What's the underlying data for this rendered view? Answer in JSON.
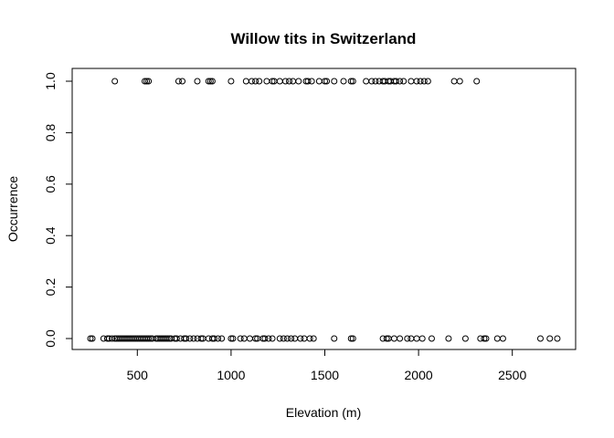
{
  "chart_data": {
    "type": "scatter",
    "title": "Willow tits in Switzerland",
    "xlabel": "Elevation (m)",
    "ylabel": "Occurrence",
    "xlim": [
      200,
      2800
    ],
    "ylim": [
      0,
      1
    ],
    "x_ticks": [
      500,
      1000,
      1500,
      2000,
      2500
    ],
    "x_tick_labels": [
      "500",
      "1000",
      "1500",
      "2000",
      "2500"
    ],
    "y_ticks": [
      0,
      0.2,
      0.4,
      0.6,
      0.8,
      1
    ],
    "y_tick_labels": [
      "0.0",
      "0.2",
      "0.4",
      "0.6",
      "0.8",
      "1.0"
    ],
    "grid": false,
    "legend": "none",
    "series": [
      {
        "marker": "open-circle",
        "points": [
          [
            250,
            0
          ],
          [
            260,
            0
          ],
          [
            320,
            0
          ],
          [
            340,
            0
          ],
          [
            350,
            0
          ],
          [
            365,
            0
          ],
          [
            380,
            0
          ],
          [
            390,
            0
          ],
          [
            400,
            0
          ],
          [
            410,
            0
          ],
          [
            420,
            0
          ],
          [
            430,
            0
          ],
          [
            440,
            0
          ],
          [
            450,
            0
          ],
          [
            460,
            0
          ],
          [
            470,
            0
          ],
          [
            480,
            0
          ],
          [
            490,
            0
          ],
          [
            500,
            0
          ],
          [
            510,
            0
          ],
          [
            520,
            0
          ],
          [
            530,
            0
          ],
          [
            540,
            0
          ],
          [
            550,
            0
          ],
          [
            560,
            0
          ],
          [
            570,
            0
          ],
          [
            580,
            0
          ],
          [
            600,
            0
          ],
          [
            610,
            0
          ],
          [
            620,
            0
          ],
          [
            630,
            0
          ],
          [
            640,
            0
          ],
          [
            650,
            0
          ],
          [
            660,
            0
          ],
          [
            670,
            0
          ],
          [
            680,
            0
          ],
          [
            700,
            0
          ],
          [
            710,
            0
          ],
          [
            730,
            0
          ],
          [
            750,
            0
          ],
          [
            760,
            0
          ],
          [
            780,
            0
          ],
          [
            800,
            0
          ],
          [
            820,
            0
          ],
          [
            840,
            0
          ],
          [
            850,
            0
          ],
          [
            880,
            0
          ],
          [
            900,
            0
          ],
          [
            910,
            0
          ],
          [
            930,
            0
          ],
          [
            950,
            0
          ],
          [
            1000,
            0
          ],
          [
            1010,
            0
          ],
          [
            1050,
            0
          ],
          [
            1070,
            0
          ],
          [
            1100,
            0
          ],
          [
            1130,
            0
          ],
          [
            1140,
            0
          ],
          [
            1170,
            0
          ],
          [
            1180,
            0
          ],
          [
            1200,
            0
          ],
          [
            1220,
            0
          ],
          [
            1260,
            0
          ],
          [
            1280,
            0
          ],
          [
            1300,
            0
          ],
          [
            1320,
            0
          ],
          [
            1340,
            0
          ],
          [
            1370,
            0
          ],
          [
            1390,
            0
          ],
          [
            1420,
            0
          ],
          [
            1440,
            0
          ],
          [
            1550,
            0
          ],
          [
            1640,
            0
          ],
          [
            1650,
            0
          ],
          [
            1810,
            0
          ],
          [
            1830,
            0
          ],
          [
            1840,
            0
          ],
          [
            1870,
            0
          ],
          [
            1900,
            0
          ],
          [
            1940,
            0
          ],
          [
            1960,
            0
          ],
          [
            1990,
            0
          ],
          [
            2020,
            0
          ],
          [
            2070,
            0
          ],
          [
            2160,
            0
          ],
          [
            2250,
            0
          ],
          [
            2330,
            0
          ],
          [
            2350,
            0
          ],
          [
            2360,
            0
          ],
          [
            2420,
            0
          ],
          [
            2450,
            0
          ],
          [
            2650,
            0
          ],
          [
            2700,
            0
          ],
          [
            2740,
            0
          ],
          [
            380,
            1
          ],
          [
            540,
            1
          ],
          [
            550,
            1
          ],
          [
            560,
            1
          ],
          [
            720,
            1
          ],
          [
            740,
            1
          ],
          [
            820,
            1
          ],
          [
            880,
            1
          ],
          [
            890,
            1
          ],
          [
            900,
            1
          ],
          [
            1000,
            1
          ],
          [
            1080,
            1
          ],
          [
            1110,
            1
          ],
          [
            1130,
            1
          ],
          [
            1150,
            1
          ],
          [
            1190,
            1
          ],
          [
            1220,
            1
          ],
          [
            1230,
            1
          ],
          [
            1260,
            1
          ],
          [
            1290,
            1
          ],
          [
            1310,
            1
          ],
          [
            1330,
            1
          ],
          [
            1360,
            1
          ],
          [
            1400,
            1
          ],
          [
            1410,
            1
          ],
          [
            1430,
            1
          ],
          [
            1470,
            1
          ],
          [
            1500,
            1
          ],
          [
            1510,
            1
          ],
          [
            1550,
            1
          ],
          [
            1600,
            1
          ],
          [
            1640,
            1
          ],
          [
            1650,
            1
          ],
          [
            1720,
            1
          ],
          [
            1750,
            1
          ],
          [
            1770,
            1
          ],
          [
            1790,
            1
          ],
          [
            1810,
            1
          ],
          [
            1820,
            1
          ],
          [
            1840,
            1
          ],
          [
            1850,
            1
          ],
          [
            1870,
            1
          ],
          [
            1880,
            1
          ],
          [
            1900,
            1
          ],
          [
            1920,
            1
          ],
          [
            1960,
            1
          ],
          [
            1990,
            1
          ],
          [
            2010,
            1
          ],
          [
            2030,
            1
          ],
          [
            2050,
            1
          ],
          [
            2190,
            1
          ],
          [
            2220,
            1
          ],
          [
            2310,
            1
          ]
        ]
      }
    ]
  }
}
